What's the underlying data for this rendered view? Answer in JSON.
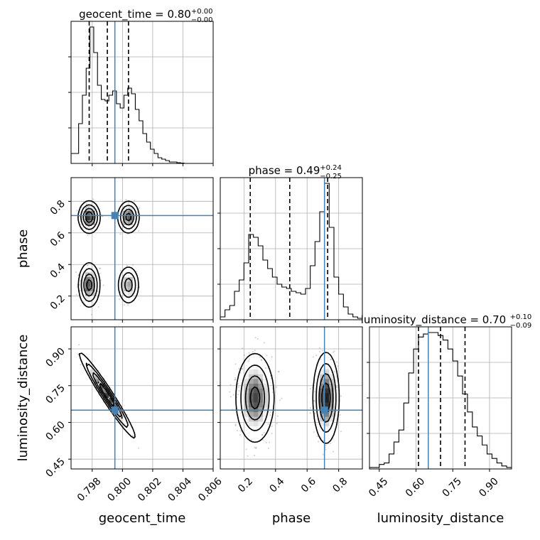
{
  "chart_data": {
    "type": "corner",
    "parameters": [
      "geocent_time",
      "phase",
      "luminosity_distance"
    ],
    "truths": {
      "geocent_time": 0.7995,
      "phase": 0.71,
      "luminosity_distance": 0.65
    },
    "line_color": "#4682b4",
    "contour_color": "#000000",
    "grid": true,
    "titles": [
      {
        "param": "geocent_time",
        "text": "geocent_time = 0.80",
        "plus": "+0.00",
        "minus": "−0.00"
      },
      {
        "param": "phase",
        "text": "phase = 0.49",
        "plus": "+0.24",
        "minus": "−0.25"
      },
      {
        "param": "luminosity_distance",
        "text": "luminosity_distance = 0.70",
        "plus": "+0.10",
        "minus": "−0.09"
      }
    ],
    "axis_labels": {
      "x": [
        "geocent_time",
        "phase",
        "luminosity_distance"
      ],
      "y": [
        "phase",
        "luminosity_distance"
      ]
    },
    "ranges": {
      "geocent_time": [
        0.7966,
        0.806
      ],
      "phase": [
        0.05,
        0.95
      ],
      "luminosity_distance": [
        0.41,
        0.99
      ]
    },
    "ticks": {
      "geocent_time": [
        "0.798",
        "0.800",
        "0.802",
        "0.804",
        "0.806"
      ],
      "phase_x": [
        "0.2",
        "0.4",
        "0.6",
        "0.8"
      ],
      "phase_y": [
        "0.2",
        "0.4",
        "0.6",
        "0.8"
      ],
      "luminosity_distance": [
        "0.45",
        "0.60",
        "0.75",
        "0.90"
      ]
    },
    "quantiles": {
      "geocent_time": [
        0.7978,
        0.799,
        0.8004
      ],
      "phase": [
        0.24,
        0.49,
        0.73
      ],
      "luminosity_distance": [
        0.61,
        0.7,
        0.8
      ]
    },
    "histograms": {
      "geocent_time": {
        "edges": [
          0.7966,
          0.79685,
          0.7971,
          0.79735,
          0.7976,
          0.79785,
          0.7981,
          0.79835,
          0.7986,
          0.79885,
          0.7991,
          0.79935,
          0.7996,
          0.79985,
          0.8001,
          0.80035,
          0.8006,
          0.80085,
          0.8011,
          0.80135,
          0.8016,
          0.80185,
          0.8021,
          0.80235,
          0.8026,
          0.80285,
          0.8031,
          0.80335,
          0.8036,
          0.80385,
          0.8041
        ],
        "counts": [
          0.07,
          0.07,
          0.28,
          0.48,
          0.67,
          0.96,
          0.78,
          0.55,
          0.45,
          0.44,
          0.48,
          0.51,
          0.42,
          0.39,
          0.48,
          0.53,
          0.49,
          0.38,
          0.3,
          0.21,
          0.15,
          0.1,
          0.07,
          0.04,
          0.03,
          0.02,
          0.01,
          0.01,
          0.005,
          0.002
        ]
      },
      "phase": {
        "edges": [
          0.05,
          0.08,
          0.11,
          0.14,
          0.17,
          0.2,
          0.23,
          0.26,
          0.29,
          0.32,
          0.35,
          0.38,
          0.41,
          0.44,
          0.47,
          0.5,
          0.53,
          0.56,
          0.59,
          0.62,
          0.65,
          0.68,
          0.71,
          0.74,
          0.77,
          0.8,
          0.83,
          0.86,
          0.89,
          0.92,
          0.95
        ],
        "counts": [
          0.02,
          0.07,
          0.1,
          0.2,
          0.28,
          0.4,
          0.6,
          0.58,
          0.52,
          0.42,
          0.36,
          0.3,
          0.25,
          0.23,
          0.22,
          0.2,
          0.19,
          0.18,
          0.22,
          0.38,
          0.55,
          0.76,
          0.96,
          0.65,
          0.3,
          0.18,
          0.09,
          0.04,
          0.02,
          0.01
        ]
      },
      "luminosity_distance": {
        "edges": [
          0.41,
          0.43,
          0.45,
          0.47,
          0.49,
          0.51,
          0.53,
          0.55,
          0.57,
          0.59,
          0.61,
          0.63,
          0.65,
          0.67,
          0.69,
          0.71,
          0.73,
          0.75,
          0.77,
          0.79,
          0.81,
          0.83,
          0.85,
          0.87,
          0.89,
          0.91,
          0.93,
          0.95,
          0.97,
          0.99
        ],
        "counts": [
          0.01,
          0.01,
          0.03,
          0.04,
          0.1,
          0.18,
          0.26,
          0.44,
          0.64,
          0.8,
          0.88,
          0.9,
          0.91,
          0.91,
          0.89,
          0.86,
          0.8,
          0.72,
          0.62,
          0.5,
          0.38,
          0.28,
          0.22,
          0.16,
          0.1,
          0.07,
          0.04,
          0.02,
          0.01
        ]
      }
    },
    "densities": {
      "phase_vs_geocent_time": [
        {
          "x": 0.7978,
          "y": 0.7,
          "sx": 0.00035,
          "sy": 0.05,
          "w": 1.0,
          "rho": 0.0
        },
        {
          "x": 0.8004,
          "y": 0.7,
          "sx": 0.00035,
          "sy": 0.05,
          "w": 0.9,
          "rho": 0.0
        },
        {
          "x": 0.7978,
          "y": 0.27,
          "sx": 0.00035,
          "sy": 0.07,
          "w": 0.9,
          "rho": 0.0
        },
        {
          "x": 0.8004,
          "y": 0.27,
          "sx": 0.00035,
          "sy": 0.06,
          "w": 0.7,
          "rho": 0.0
        }
      ],
      "luminosity_distance_vs_geocent_time": [
        {
          "x": 0.799,
          "y": 0.71,
          "sx": 0.0009,
          "sy": 0.085,
          "w": 1.0,
          "rho": -0.97
        }
      ],
      "luminosity_distance_vs_phase": [
        {
          "x": 0.27,
          "y": 0.7,
          "sx": 0.06,
          "sy": 0.09,
          "w": 0.9,
          "rho": 0.0
        },
        {
          "x": 0.72,
          "y": 0.7,
          "sx": 0.04,
          "sy": 0.09,
          "w": 1.0,
          "rho": 0.0
        }
      ]
    }
  }
}
